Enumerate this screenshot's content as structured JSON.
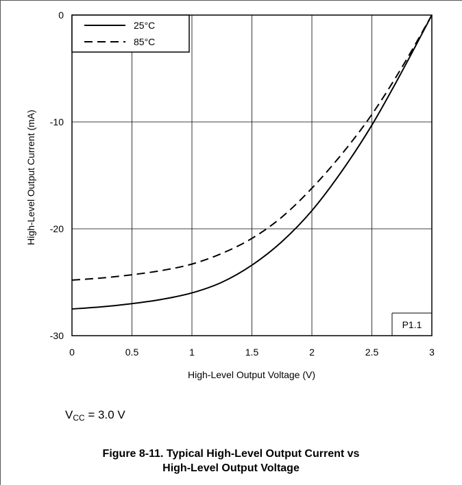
{
  "chart_data": {
    "type": "line",
    "xlabel": "High-Level Output Voltage (V)",
    "ylabel": "High-Level Output Current (mA)",
    "xlim": [
      0,
      3
    ],
    "ylim": [
      -30,
      0
    ],
    "x_ticks": [
      "0",
      "0.5",
      "1",
      "1.5",
      "2",
      "2.5",
      "3"
    ],
    "y_ticks": [
      "0",
      "-10",
      "-20",
      "-30"
    ],
    "grid": true,
    "legend_position": "top-left",
    "annotation": "P1.1",
    "series": [
      {
        "name": "25°C",
        "line_style": "solid",
        "x": [
          0,
          0.25,
          0.5,
          0.75,
          1.0,
          1.25,
          1.5,
          1.75,
          2.0,
          2.25,
          2.5,
          2.75,
          3.0
        ],
        "y": [
          -27.5,
          -27.3,
          -27.0,
          -26.6,
          -26.0,
          -25.0,
          -23.4,
          -21.2,
          -18.3,
          -14.6,
          -10.3,
          -5.3,
          0
        ]
      },
      {
        "name": "85°C",
        "line_style": "dashed",
        "x": [
          0,
          0.25,
          0.5,
          0.75,
          1.0,
          1.25,
          1.5,
          1.75,
          2.0,
          2.25,
          2.5,
          2.75,
          3.0
        ],
        "y": [
          -24.8,
          -24.6,
          -24.3,
          -23.9,
          -23.3,
          -22.3,
          -20.9,
          -18.9,
          -16.2,
          -13.0,
          -9.3,
          -4.9,
          0
        ]
      }
    ]
  },
  "conditions": {
    "v_symbol": "V",
    "v_subscript": "CC",
    "v_value": " = 3.0 V"
  },
  "caption": {
    "line1": "Figure 8-11. Typical High-Level Output Current vs",
    "line2": "High-Level Output Voltage"
  }
}
